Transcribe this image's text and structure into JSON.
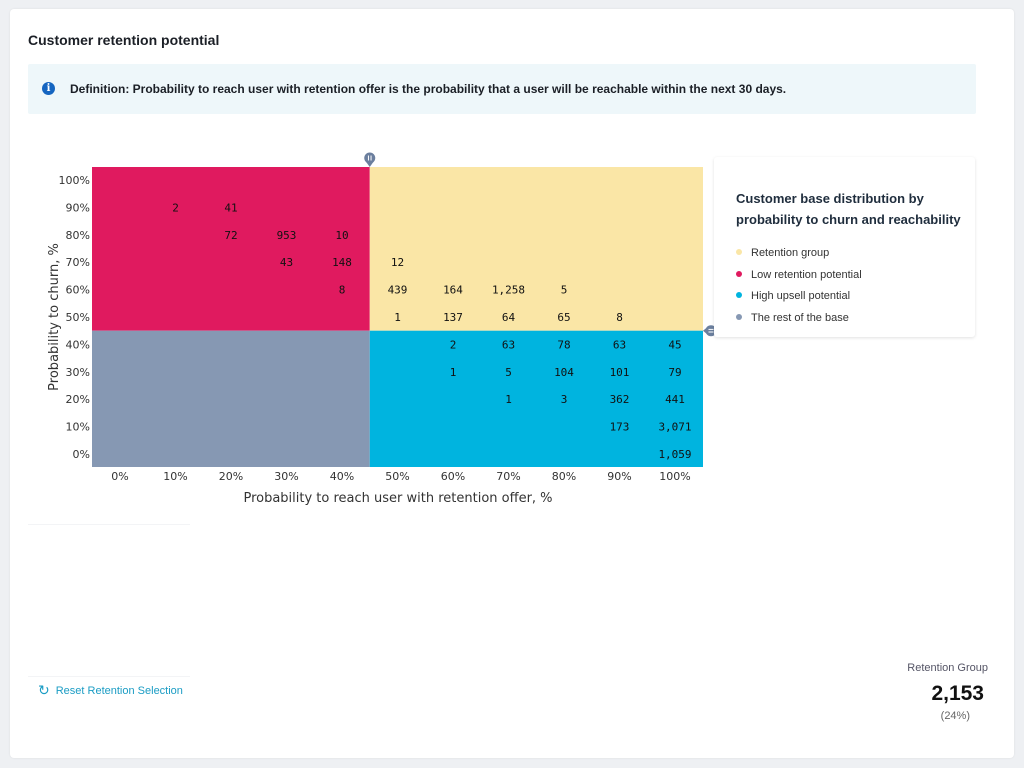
{
  "title": "Customer retention potential",
  "info": {
    "icon": "info-icon",
    "text": "Definition: Probability to reach user with retention offer is the probability that a user will be reachable within the next 30 days."
  },
  "colors": {
    "retention": "#fae6a6",
    "low": "#e01a5f",
    "upsell": "#00b4df",
    "rest": "#8698b3"
  },
  "chart_data": {
    "type": "heatmap",
    "xlabel": "Probability to reach user with retention offer, %",
    "ylabel": "Probability to churn, %",
    "x_ticks": [
      "0%",
      "10%",
      "20%",
      "30%",
      "40%",
      "50%",
      "60%",
      "70%",
      "80%",
      "90%",
      "100%"
    ],
    "y_ticks": [
      "100%",
      "90%",
      "80%",
      "70%",
      "60%",
      "50%",
      "40%",
      "30%",
      "20%",
      "10%",
      "0%"
    ],
    "x_threshold": 45,
    "y_threshold": 45,
    "cells": [
      {
        "x": 10,
        "y": 90,
        "label": "2"
      },
      {
        "x": 20,
        "y": 90,
        "label": "41"
      },
      {
        "x": 20,
        "y": 80,
        "label": "72"
      },
      {
        "x": 30,
        "y": 80,
        "label": "953"
      },
      {
        "x": 40,
        "y": 80,
        "label": "10"
      },
      {
        "x": 30,
        "y": 70,
        "label": "43"
      },
      {
        "x": 40,
        "y": 70,
        "label": "148"
      },
      {
        "x": 50,
        "y": 70,
        "label": "12"
      },
      {
        "x": 40,
        "y": 60,
        "label": "8"
      },
      {
        "x": 50,
        "y": 60,
        "label": "439"
      },
      {
        "x": 60,
        "y": 60,
        "label": "164"
      },
      {
        "x": 70,
        "y": 60,
        "label": "1,258"
      },
      {
        "x": 80,
        "y": 60,
        "label": "5"
      },
      {
        "x": 50,
        "y": 50,
        "label": "1"
      },
      {
        "x": 60,
        "y": 50,
        "label": "137"
      },
      {
        "x": 70,
        "y": 50,
        "label": "64"
      },
      {
        "x": 80,
        "y": 50,
        "label": "65"
      },
      {
        "x": 90,
        "y": 50,
        "label": "8"
      },
      {
        "x": 60,
        "y": 40,
        "label": "2"
      },
      {
        "x": 70,
        "y": 40,
        "label": "63"
      },
      {
        "x": 80,
        "y": 40,
        "label": "78"
      },
      {
        "x": 90,
        "y": 40,
        "label": "63"
      },
      {
        "x": 100,
        "y": 40,
        "label": "45"
      },
      {
        "x": 60,
        "y": 30,
        "label": "1"
      },
      {
        "x": 70,
        "y": 30,
        "label": "5"
      },
      {
        "x": 80,
        "y": 30,
        "label": "104"
      },
      {
        "x": 90,
        "y": 30,
        "label": "101"
      },
      {
        "x": 100,
        "y": 30,
        "label": "79"
      },
      {
        "x": 70,
        "y": 20,
        "label": "1"
      },
      {
        "x": 80,
        "y": 20,
        "label": "3"
      },
      {
        "x": 90,
        "y": 20,
        "label": "362"
      },
      {
        "x": 100,
        "y": 20,
        "label": "441"
      },
      {
        "x": 90,
        "y": 10,
        "label": "173"
      },
      {
        "x": 100,
        "y": 10,
        "label": "3,071"
      },
      {
        "x": 100,
        "y": 0,
        "label": "1,059"
      }
    ]
  },
  "legend": {
    "title": "Customer base distribution by probability to churn and reachability",
    "items": [
      {
        "label": "Retention group",
        "color": "#fae6a6"
      },
      {
        "label": "Low retention potential",
        "color": "#e01a5f"
      },
      {
        "label": "High upsell potential",
        "color": "#00b4df"
      },
      {
        "label": "The rest of the base",
        "color": "#8698b3"
      }
    ]
  },
  "reset": {
    "icon": "refresh-icon",
    "label": "Reset Retention Selection"
  },
  "summary": {
    "label": "Retention Group",
    "value": "2,153",
    "percent": "(24%)"
  }
}
